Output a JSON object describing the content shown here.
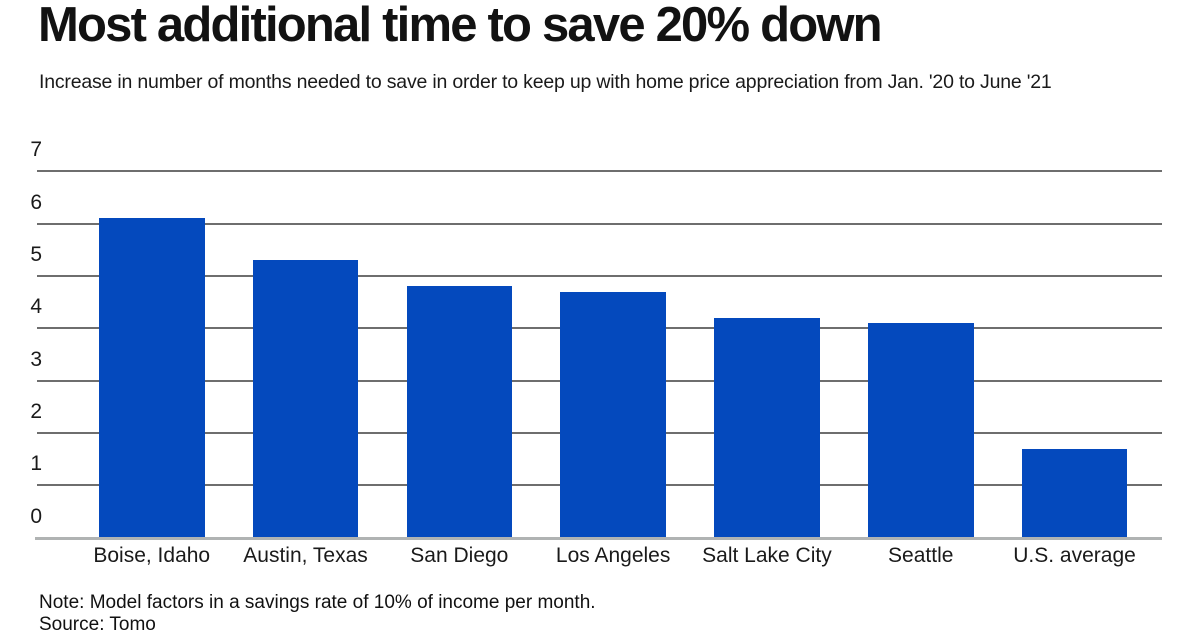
{
  "chart_data": {
    "type": "bar",
    "title": "Most additional time to save 20% down",
    "subtitle": "Increase in number of months needed to save in order to keep up with home price appreciation from Jan. '20 to June '21",
    "categories": [
      "Boise, Idaho",
      "Austin, Texas",
      "San Diego",
      "Los Angeles",
      "Salt Lake City",
      "Seattle",
      "U.S. average"
    ],
    "values": [
      6.1,
      5.3,
      4.8,
      4.7,
      4.2,
      4.1,
      1.7
    ],
    "xlabel": "",
    "ylabel": "",
    "ylim": [
      0,
      7
    ],
    "yticks": [
      0,
      1,
      2,
      3,
      4,
      5,
      6,
      7
    ],
    "grid": true,
    "legend_position": "none",
    "note": "Note: Model factors in a savings rate of 10% of income per month.",
    "source": "Source: Tomo",
    "colors": {
      "bar": "#0449BD",
      "gridline": "#6E6E6E",
      "baseline": "#B0B3B3",
      "title_text": "#121212",
      "body_text": "#1A1A1A"
    }
  }
}
